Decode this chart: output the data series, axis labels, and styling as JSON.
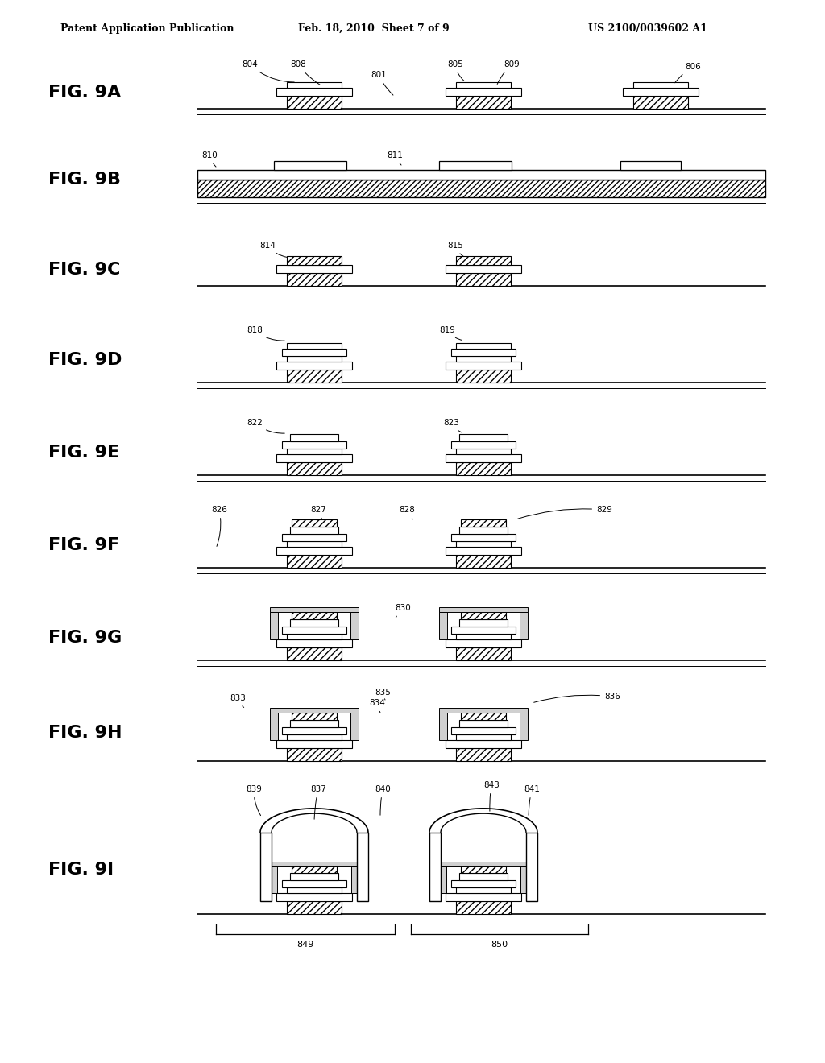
{
  "bg_color": "#ffffff",
  "header_left": "Patent Application Publication",
  "header_mid": "Feb. 18, 2010  Sheet 7 of 9",
  "header_right": "US 2100/0039602 A1",
  "fig_names": [
    "FIG. 9A",
    "FIG. 9B",
    "FIG. 9C",
    "FIG. 9D",
    "FIG. 9E",
    "FIG. 9F",
    "FIG. 9G",
    "FIG. 9H",
    "FIG. 9I"
  ],
  "lw_thick": 1.2,
  "lw_med": 0.9,
  "lw_thin": 0.6
}
